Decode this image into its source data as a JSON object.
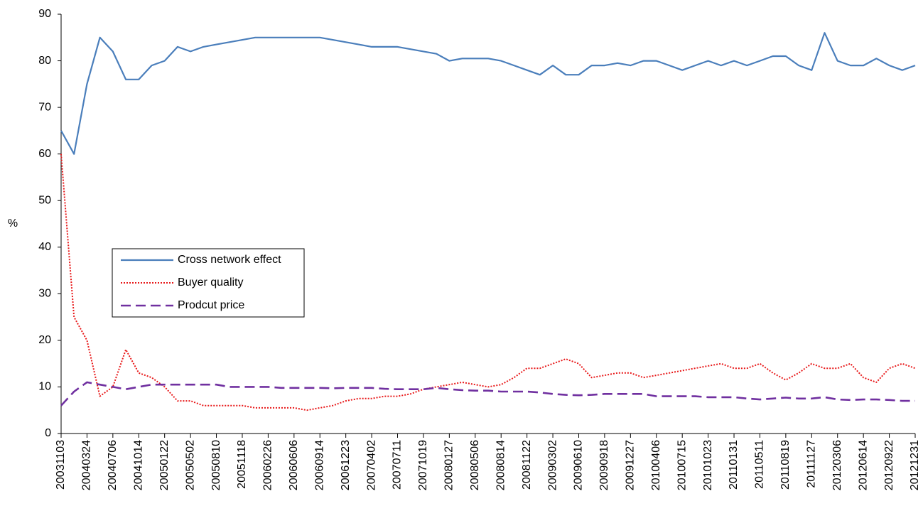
{
  "chart_data": {
    "type": "line",
    "ylabel": "%",
    "categories": [
      "20031103",
      null,
      "20040324",
      null,
      "20040706",
      null,
      "20041014",
      null,
      "20050122",
      null,
      "20050502",
      null,
      "20050810",
      null,
      "20051118",
      null,
      "20060226",
      null,
      "20060606",
      null,
      "20060914",
      null,
      "20061223",
      null,
      "20070402",
      null,
      "20070711",
      null,
      "20071019",
      null,
      "20080127",
      null,
      "20080506",
      null,
      "20080814",
      null,
      "20081122",
      null,
      "20090302",
      null,
      "20090610",
      null,
      "20090918",
      null,
      "20091227",
      null,
      "20100406",
      null,
      "20100715",
      null,
      "20101023",
      null,
      "20110131",
      null,
      "20110511",
      null,
      "20110819",
      null,
      "20111127",
      null,
      "20120306",
      null,
      "20120614",
      null,
      "20120922",
      null,
      "20121231"
    ],
    "series": [
      {
        "name": "Cross network effect",
        "color": "#4a7ebb",
        "style": "solid",
        "values": [
          65,
          60,
          75,
          85,
          82,
          76,
          76,
          79,
          80,
          83,
          82,
          83,
          83.5,
          84,
          84.5,
          85,
          85,
          85,
          85,
          85,
          85,
          84.5,
          84,
          83.5,
          83,
          83,
          83,
          82.5,
          82,
          81.5,
          80,
          80.5,
          80.5,
          80.5,
          80,
          79,
          78,
          77,
          79,
          77,
          77,
          79,
          79,
          79.5,
          79,
          80,
          80,
          79,
          78,
          79,
          80,
          79,
          80,
          79,
          80,
          81,
          81,
          79,
          78,
          86,
          80,
          79,
          79,
          80.5,
          79,
          78,
          79
        ]
      },
      {
        "name": "Buyer quality",
        "color": "#e8191a",
        "style": "dotted",
        "values": [
          60,
          25,
          20,
          8,
          10,
          18,
          13,
          12,
          10,
          7,
          7,
          6,
          6,
          6,
          6,
          5.5,
          5.5,
          5.5,
          5.5,
          5,
          5.5,
          6,
          7,
          7.5,
          7.5,
          8,
          8,
          8.5,
          9.5,
          10,
          10.5,
          11,
          10.5,
          10,
          10.5,
          12,
          14,
          14,
          15,
          16,
          15,
          12,
          12.5,
          13,
          13,
          12,
          12.5,
          13,
          13.5,
          14,
          14.5,
          15,
          14,
          14,
          15,
          13,
          11.5,
          13,
          15,
          14,
          14,
          15,
          12,
          11,
          14,
          15,
          14
        ]
      },
      {
        "name": "Prodcut price",
        "color": "#7030a0",
        "style": "dashed",
        "values": [
          6,
          9,
          11,
          10.5,
          10,
          9.5,
          10,
          10.5,
          10.5,
          10.5,
          10.5,
          10.5,
          10.5,
          10,
          10,
          10,
          10,
          9.8,
          9.8,
          9.8,
          9.8,
          9.7,
          9.8,
          9.8,
          9.8,
          9.6,
          9.5,
          9.5,
          9.5,
          9.8,
          9.5,
          9.3,
          9.2,
          9.2,
          9,
          9,
          9,
          8.8,
          8.5,
          8.3,
          8.2,
          8.3,
          8.5,
          8.5,
          8.5,
          8.5,
          8,
          8,
          8,
          8,
          7.8,
          7.8,
          7.8,
          7.5,
          7.3,
          7.5,
          7.7,
          7.5,
          7.5,
          7.8,
          7.3,
          7.2,
          7.3,
          7.3,
          7.2,
          7,
          7
        ]
      }
    ],
    "ylim": [
      0,
      90
    ],
    "yticks": [
      0,
      10,
      20,
      30,
      40,
      50,
      60,
      70,
      80,
      90
    ],
    "legend": "center-left"
  }
}
